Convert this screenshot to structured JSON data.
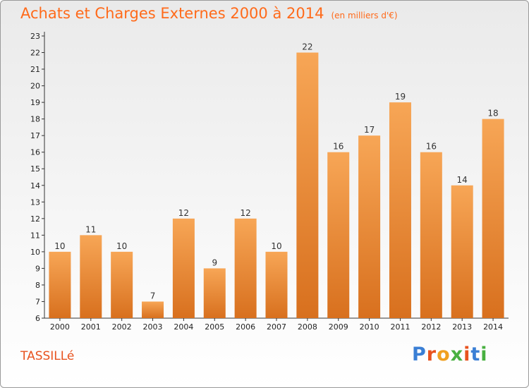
{
  "title": "Achats et Charges Externes 2000 à 2014",
  "unit_note": "(en milliers d'€)",
  "commune": "TASSILLé",
  "logo": {
    "text": "Proxiti",
    "letter_colors": [
      "#3a7fd5",
      "#e8521e",
      "#f0a020",
      "#48b040",
      "#e8521e",
      "#3a7fd5",
      "#48b040"
    ]
  },
  "colors": {
    "bar_top": "#f7a656",
    "bar_bottom": "#d8701e",
    "title": "#ff6a1a",
    "commune": "#e8521e"
  },
  "chart_data": {
    "type": "bar",
    "categories": [
      "2000",
      "2001",
      "2002",
      "2003",
      "2004",
      "2005",
      "2006",
      "2007",
      "2008",
      "2009",
      "2010",
      "2011",
      "2012",
      "2013",
      "2014"
    ],
    "values": [
      10,
      11,
      10,
      7,
      12,
      9,
      12,
      10,
      22,
      16,
      17,
      19,
      16,
      14,
      18
    ],
    "ylim": [
      6,
      23
    ],
    "yticks": [
      6,
      7,
      8,
      9,
      10,
      11,
      12,
      13,
      14,
      15,
      16,
      17,
      18,
      19,
      20,
      21,
      22,
      23
    ],
    "grid": false,
    "title": "Achats et Charges Externes 2000 à 2014",
    "xlabel": "",
    "ylabel": ""
  }
}
